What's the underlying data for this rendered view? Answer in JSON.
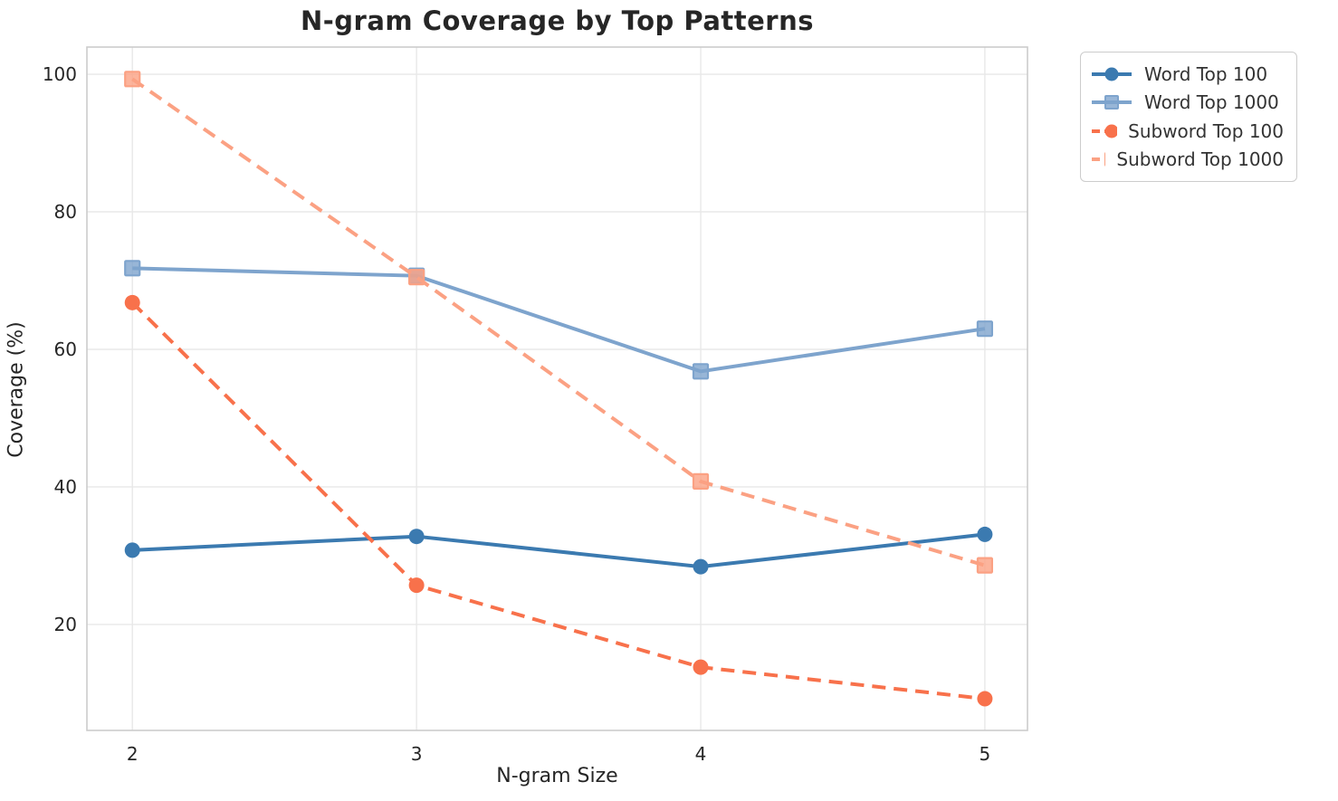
{
  "chart_data": {
    "type": "line",
    "title": "N-gram Coverage by Top Patterns",
    "xlabel": "N-gram Size",
    "ylabel": "Coverage (%)",
    "x": [
      2,
      3,
      4,
      5
    ],
    "x_ticks": [
      "2",
      "3",
      "4",
      "5"
    ],
    "y_ticks": [
      "20",
      "40",
      "60",
      "80",
      "100"
    ],
    "xlim": [
      1.84,
      5.15
    ],
    "ylim": [
      4.6,
      103.95
    ],
    "grid": true,
    "legend_position": "outside-top-right",
    "series": [
      {
        "name": "Word Top 100",
        "values": [
          30.8,
          32.8,
          28.4,
          33.1
        ],
        "color": "#3b7ab0",
        "marker": "circle",
        "line_style": "solid"
      },
      {
        "name": "Word Top 1000",
        "values": [
          71.8,
          70.7,
          56.8,
          63.0
        ],
        "color": "#7ea4cd",
        "marker": "square",
        "line_style": "solid"
      },
      {
        "name": "Subword Top 100",
        "values": [
          66.8,
          25.7,
          13.8,
          9.2
        ],
        "color": "#f8714b",
        "marker": "circle",
        "line_style": "dashed"
      },
      {
        "name": "Subword Top 1000",
        "values": [
          99.3,
          70.5,
          40.8,
          28.6
        ],
        "color": "#fba183",
        "marker": "square",
        "line_style": "dashed"
      }
    ],
    "style": {
      "background": "#ffffff",
      "grid_color": "#e8e8e8",
      "spine_color": "#cccccc",
      "text_color": "#262626",
      "legend_border": "#cccccc",
      "legend_text": "#333333"
    }
  }
}
